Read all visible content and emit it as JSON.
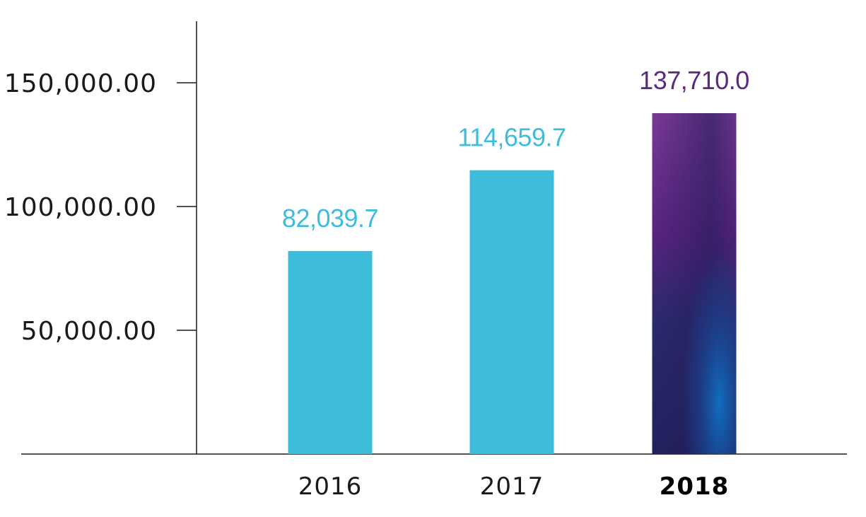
{
  "chart_data": {
    "type": "bar",
    "categories": [
      "2016",
      "2017",
      "2018"
    ],
    "values": [
      82039.7,
      114659.7,
      137710.0
    ],
    "value_labels": [
      "82,039.7",
      "114,659.7",
      "137,710.0"
    ],
    "highlight_category": "2018",
    "yticks": [
      {
        "value": 50000,
        "label": "50,000.00"
      },
      {
        "value": 100000,
        "label": "100,000.00"
      },
      {
        "value": 150000,
        "label": "150,000.00"
      }
    ],
    "ylim": [
      0,
      175000
    ],
    "title": "",
    "xlabel": "",
    "ylabel": "",
    "grid": false,
    "colors": {
      "bar": "#3dbcdc",
      "highlight_bar_top": "#6a2a8a",
      "highlight_bar_mid": "#2b2568",
      "highlight_bar_bottom": "#1565b8",
      "label": "#3dbcdc",
      "highlight_label": "#5a2a82",
      "axis": "#1a1a1a"
    }
  }
}
